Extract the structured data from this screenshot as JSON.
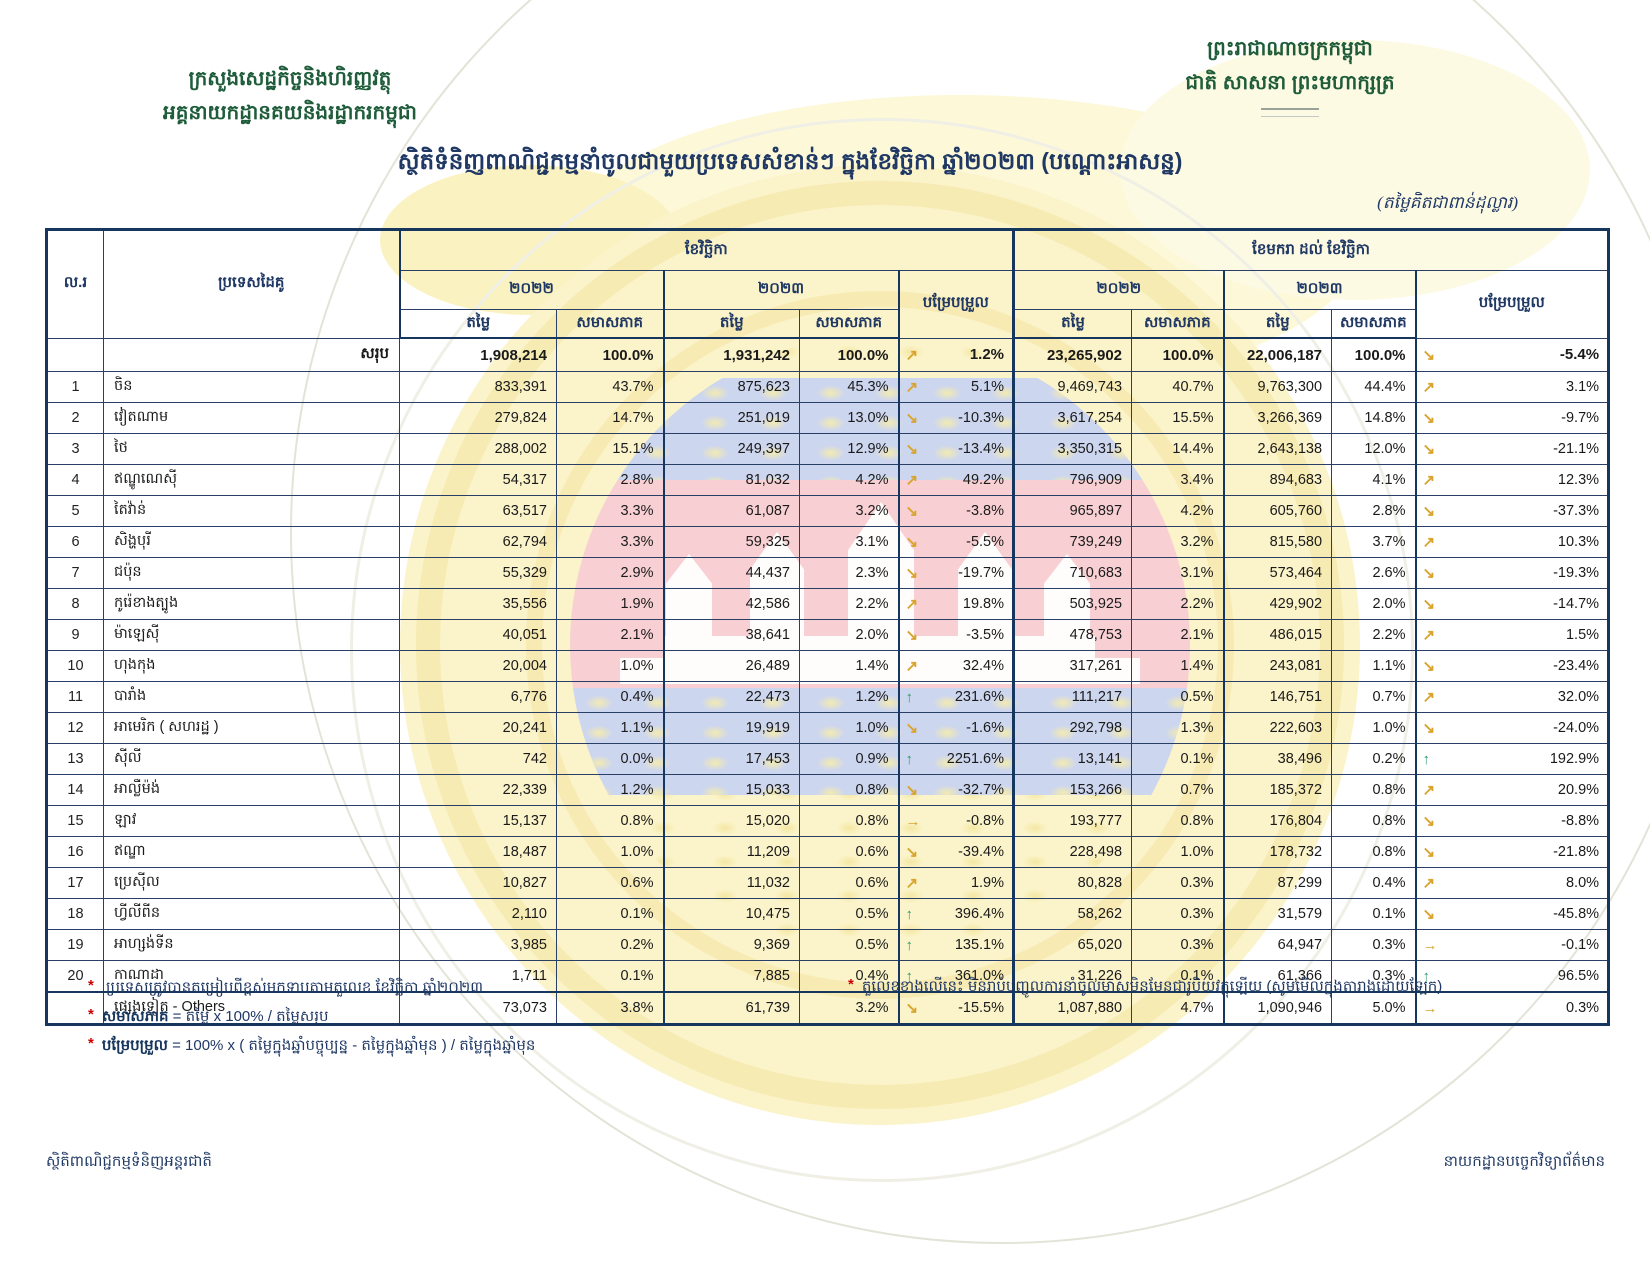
{
  "page": {
    "ministry": {
      "line1": "ក្រសួងសេដ្ឋកិច្ចនិងហិរញ្ញវត្ថុ",
      "line2": "អគ្គនាយកដ្ឋានគយនិងរដ្ឋាករកម្ពុជា"
    },
    "kingdom": {
      "line1": "ព្រះរាជាណាចក្រកម្ពុជា",
      "line2": "ជាតិ សាសនា ព្រះមហាក្សត្រ"
    },
    "title": "ស្ថិតិទំនិញពាណិជ្ជកម្មនាំចូលជាមួយប្រទេសសំខាន់ៗ ក្នុងខែវិច្ឆិកា ឆ្នាំ២០២៣ (បណ្ដោះអាសន្ន)",
    "unit_note": "(តម្លៃគិតជាពាន់ដុល្លារ)",
    "footer": {
      "left": "ស្ថិតិពាណិជ្ជកម្មទំនិញអន្តរជាតិ",
      "right": "នាយកដ្ឋានបច្ចេកវិទ្យាព័ត៌មាន"
    }
  },
  "table": {
    "headers": {
      "no": "ល.រ",
      "country": "ប្រទេសដៃគូ",
      "nov": "ខែវិច្ឆិកា",
      "jan_nov": "ខែមករា ដល់ ខែវិច្ឆិកា",
      "y2022": "២០២២",
      "y2023": "២០២៣",
      "value": "តម្លៃ",
      "share": "សមាសភាគ",
      "change": "បម្រែបម្រួល"
    },
    "total": {
      "no": "",
      "country": "សរុប",
      "nv22": "1,908,214",
      "ns22": "100.0%",
      "nv23": "1,931,242",
      "ns23": "100.0%",
      "nch": "1.2%",
      "ntr": "up",
      "jv22": "23,265,902",
      "js22": "100.0%",
      "jv23": "22,006,187",
      "js23": "100.0%",
      "jch": "-5.4%",
      "jtr": "down"
    },
    "rows": [
      {
        "no": "1",
        "country": "ចិន",
        "nv22": "833,391",
        "ns22": "43.7%",
        "nv23": "875,623",
        "ns23": "45.3%",
        "nch": "5.1%",
        "ntr": "up",
        "jv22": "9,469,743",
        "js22": "40.7%",
        "jv23": "9,763,300",
        "js23": "44.4%",
        "jch": "3.1%",
        "jtr": "up"
      },
      {
        "no": "2",
        "country": "វៀតណាម",
        "nv22": "279,824",
        "ns22": "14.7%",
        "nv23": "251,019",
        "ns23": "13.0%",
        "nch": "-10.3%",
        "ntr": "down",
        "jv22": "3,617,254",
        "js22": "15.5%",
        "jv23": "3,266,369",
        "js23": "14.8%",
        "jch": "-9.7%",
        "jtr": "down"
      },
      {
        "no": "3",
        "country": "ថៃ",
        "nv22": "288,002",
        "ns22": "15.1%",
        "nv23": "249,397",
        "ns23": "12.9%",
        "nch": "-13.4%",
        "ntr": "down",
        "jv22": "3,350,315",
        "js22": "14.4%",
        "jv23": "2,643,138",
        "js23": "12.0%",
        "jch": "-21.1%",
        "jtr": "down"
      },
      {
        "no": "4",
        "country": "ឥណ្ឌូណេស៊ី",
        "nv22": "54,317",
        "ns22": "2.8%",
        "nv23": "81,032",
        "ns23": "4.2%",
        "nch": "49.2%",
        "ntr": "up",
        "jv22": "796,909",
        "js22": "3.4%",
        "jv23": "894,683",
        "js23": "4.1%",
        "jch": "12.3%",
        "jtr": "up"
      },
      {
        "no": "5",
        "country": "តៃវ៉ាន់",
        "nv22": "63,517",
        "ns22": "3.3%",
        "nv23": "61,087",
        "ns23": "3.2%",
        "nch": "-3.8%",
        "ntr": "down",
        "jv22": "965,897",
        "js22": "4.2%",
        "jv23": "605,760",
        "js23": "2.8%",
        "jch": "-37.3%",
        "jtr": "down"
      },
      {
        "no": "6",
        "country": "សិង្ហបុរី",
        "nv22": "62,794",
        "ns22": "3.3%",
        "nv23": "59,325",
        "ns23": "3.1%",
        "nch": "-5.5%",
        "ntr": "down",
        "jv22": "739,249",
        "js22": "3.2%",
        "jv23": "815,580",
        "js23": "3.7%",
        "jch": "10.3%",
        "jtr": "up"
      },
      {
        "no": "7",
        "country": "ជប៉ុន",
        "nv22": "55,329",
        "ns22": "2.9%",
        "nv23": "44,437",
        "ns23": "2.3%",
        "nch": "-19.7%",
        "ntr": "down",
        "jv22": "710,683",
        "js22": "3.1%",
        "jv23": "573,464",
        "js23": "2.6%",
        "jch": "-19.3%",
        "jtr": "down"
      },
      {
        "no": "8",
        "country": "កូរ៉េខាងត្បូង",
        "nv22": "35,556",
        "ns22": "1.9%",
        "nv23": "42,586",
        "ns23": "2.2%",
        "nch": "19.8%",
        "ntr": "up",
        "jv22": "503,925",
        "js22": "2.2%",
        "jv23": "429,902",
        "js23": "2.0%",
        "jch": "-14.7%",
        "jtr": "down"
      },
      {
        "no": "9",
        "country": "ម៉ាឡេស៊ី",
        "nv22": "40,051",
        "ns22": "2.1%",
        "nv23": "38,641",
        "ns23": "2.0%",
        "nch": "-3.5%",
        "ntr": "down",
        "jv22": "478,753",
        "js22": "2.1%",
        "jv23": "486,015",
        "js23": "2.2%",
        "jch": "1.5%",
        "jtr": "up"
      },
      {
        "no": "10",
        "country": "ហុងកុង",
        "nv22": "20,004",
        "ns22": "1.0%",
        "nv23": "26,489",
        "ns23": "1.4%",
        "nch": "32.4%",
        "ntr": "up",
        "jv22": "317,261",
        "js22": "1.4%",
        "jv23": "243,081",
        "js23": "1.1%",
        "jch": "-23.4%",
        "jtr": "down"
      },
      {
        "no": "11",
        "country": "បារាំង",
        "nv22": "6,776",
        "ns22": "0.4%",
        "nv23": "22,473",
        "ns23": "1.2%",
        "nch": "231.6%",
        "ntr": "strong_up",
        "jv22": "111,217",
        "js22": "0.5%",
        "jv23": "146,751",
        "js23": "0.7%",
        "jch": "32.0%",
        "jtr": "up"
      },
      {
        "no": "12",
        "country": "អាមេរិក ( សហរដ្ឋ )",
        "nv22": "20,241",
        "ns22": "1.1%",
        "nv23": "19,919",
        "ns23": "1.0%",
        "nch": "-1.6%",
        "ntr": "down",
        "jv22": "292,798",
        "js22": "1.3%",
        "jv23": "222,603",
        "js23": "1.0%",
        "jch": "-24.0%",
        "jtr": "down"
      },
      {
        "no": "13",
        "country": "ស៊ីលី",
        "nv22": "742",
        "ns22": "0.0%",
        "nv23": "17,453",
        "ns23": "0.9%",
        "nch": "2251.6%",
        "ntr": "strong_up",
        "jv22": "13,141",
        "js22": "0.1%",
        "jv23": "38,496",
        "js23": "0.2%",
        "jch": "192.9%",
        "jtr": "strong_up"
      },
      {
        "no": "14",
        "country": "អាល្លឺម៉ង់",
        "nv22": "22,339",
        "ns22": "1.2%",
        "nv23": "15,033",
        "ns23": "0.8%",
        "nch": "-32.7%",
        "ntr": "down",
        "jv22": "153,266",
        "js22": "0.7%",
        "jv23": "185,372",
        "js23": "0.8%",
        "jch": "20.9%",
        "jtr": "up"
      },
      {
        "no": "15",
        "country": "ឡាវ",
        "nv22": "15,137",
        "ns22": "0.8%",
        "nv23": "15,020",
        "ns23": "0.8%",
        "nch": "-0.8%",
        "ntr": "flat",
        "jv22": "193,777",
        "js22": "0.8%",
        "jv23": "176,804",
        "js23": "0.8%",
        "jch": "-8.8%",
        "jtr": "down"
      },
      {
        "no": "16",
        "country": "ឥណ្ឌា",
        "nv22": "18,487",
        "ns22": "1.0%",
        "nv23": "11,209",
        "ns23": "0.6%",
        "nch": "-39.4%",
        "ntr": "down",
        "jv22": "228,498",
        "js22": "1.0%",
        "jv23": "178,732",
        "js23": "0.8%",
        "jch": "-21.8%",
        "jtr": "down"
      },
      {
        "no": "17",
        "country": "ប្រេស៊ីល",
        "nv22": "10,827",
        "ns22": "0.6%",
        "nv23": "11,032",
        "ns23": "0.6%",
        "nch": "1.9%",
        "ntr": "up",
        "jv22": "80,828",
        "js22": "0.3%",
        "jv23": "87,299",
        "js23": "0.4%",
        "jch": "8.0%",
        "jtr": "up"
      },
      {
        "no": "18",
        "country": "ហ្វីលីពីន",
        "nv22": "2,110",
        "ns22": "0.1%",
        "nv23": "10,475",
        "ns23": "0.5%",
        "nch": "396.4%",
        "ntr": "strong_up",
        "jv22": "58,262",
        "js22": "0.3%",
        "jv23": "31,579",
        "js23": "0.1%",
        "jch": "-45.8%",
        "jtr": "down"
      },
      {
        "no": "19",
        "country": "អាហ្សង់ទីន",
        "nv22": "3,985",
        "ns22": "0.2%",
        "nv23": "9,369",
        "ns23": "0.5%",
        "nch": "135.1%",
        "ntr": "strong_up",
        "jv22": "65,020",
        "js22": "0.3%",
        "jv23": "64,947",
        "js23": "0.3%",
        "jch": "-0.1%",
        "jtr": "flat"
      },
      {
        "no": "20",
        "country": "កាណាដា",
        "nv22": "1,711",
        "ns22": "0.1%",
        "nv23": "7,885",
        "ns23": "0.4%",
        "nch": "361.0%",
        "ntr": "strong_up",
        "jv22": "31,226",
        "js22": "0.1%",
        "jv23": "61,366",
        "js23": "0.3%",
        "jch": "96.5%",
        "jtr": "strong_up"
      }
    ],
    "others": {
      "no": "",
      "country": "ផ្សេងទៀត - Others",
      "nv22": "73,073",
      "ns22": "3.8%",
      "nv23": "61,739",
      "ns23": "3.2%",
      "nch": "-15.5%",
      "ntr": "down",
      "jv22": "1,087,880",
      "js22": "4.7%",
      "jv23": "1,090,946",
      "js23": "5.0%",
      "jch": "0.3%",
      "jtr": "flat"
    }
  },
  "footnotes": {
    "left": [
      {
        "marker": "*",
        "term": "",
        "text": "ប្រទេសត្រូវបានតម្រៀបពីខ្ពស់មកទាបតាមតួលេខ ខែវិច្ឆិកា ឆ្នាំ២០២៣"
      },
      {
        "marker": "*",
        "term": "សមាសភាគ",
        "text": "= តម្លៃ  x 100% / តម្លៃសរុប"
      },
      {
        "marker": "*",
        "term": "បម្រែបម្រួល",
        "text": "= 100% x (  តម្លៃក្នុងឆ្នាំបច្ចុប្បន្ន - តម្លៃក្នុងឆ្នាំមុន  ) / តម្លៃក្នុងឆ្នាំមុន"
      }
    ],
    "right": [
      {
        "marker": "*",
        "term": "",
        "text": "តួលេខខាងលើនេះ មិនរាប់បញ្ចូលការនាំចូលមាសមិនមែនជារូបិយវត្ថុឡើយ (សូមមើលក្នុងតារាងដោយឡែក)"
      }
    ]
  },
  "icons": {
    "up": "↗",
    "down": "↘",
    "strong_up": "↑",
    "flat": "→"
  },
  "colors": {
    "navy": "#17365d",
    "green_heading": "#1e5c3a",
    "arrow_gold": "#d9a42e",
    "arrow_green": "#2f9a68",
    "flag_blue": "#cdd6ef",
    "flag_red": "#f8d0d4",
    "emblem_yellow": "#fbf3c9",
    "asterisk_red": "#cc0000"
  }
}
